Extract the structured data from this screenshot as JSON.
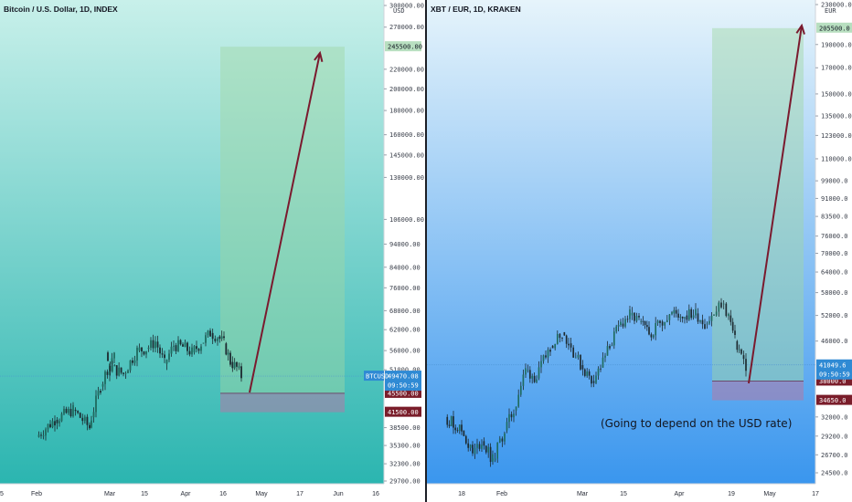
{
  "chart_data": [
    {
      "type": "candlestick",
      "title": "Bitcoin / U.S. Dollar, 1D, INDEX",
      "currency": "USD",
      "symbol_label": "BTCUSD",
      "yticks": [
        "300000.00",
        "270000.00",
        "245500.00",
        "220000.00",
        "200000.00",
        "180000.00",
        "160000.00",
        "145000.00",
        "130000.00",
        "106000.00",
        "94000.00",
        "84000.00",
        "76000.00",
        "68000.00",
        "62000.00",
        "56000.00",
        "51000.00",
        "45500.00",
        "41500.00",
        "38500.00",
        "35300.00",
        "32300.00",
        "29700.00"
      ],
      "xticks": [
        "5",
        "Feb",
        "Mar",
        "15",
        "Apr",
        "16",
        "May",
        "17",
        "Jun",
        "16"
      ],
      "ylim": [
        28500,
        300000
      ],
      "log_scale": true,
      "price_labels": {
        "current": "49470.08",
        "countdown": "09:50:59",
        "target": "245500.00",
        "entry": "45500.00",
        "stop": "41500.00"
      },
      "position": {
        "entry": 45500,
        "target": 245500,
        "stop": 41500
      },
      "colors": {
        "up": "#26a69a",
        "down": "#ef5350",
        "bg_top": "#c8f0ea",
        "bg_bottom": "#2bb5b0",
        "arrow": "#7a1a2e"
      }
    },
    {
      "type": "candlestick",
      "title": "XBT / EUR, 1D, KRAKEN",
      "currency": "EUR",
      "yticks": [
        "230000.0",
        "205500.0",
        "190000.0",
        "170000.0",
        "150000.0",
        "135000.0",
        "123000.0",
        "110000.0",
        "99000.0",
        "91000.0",
        "83500.0",
        "76000.0",
        "70000.0",
        "64000.0",
        "58000.0",
        "52000.0",
        "46000.0",
        "41049.6",
        "38000.0",
        "34650.0",
        "32000.0",
        "29200.0",
        "26700.0",
        "24500.0"
      ],
      "xticks": [
        "18",
        "Feb",
        "Mar",
        "15",
        "Apr",
        "19",
        "May",
        "17"
      ],
      "ylim": [
        23500,
        250000
      ],
      "log_scale": true,
      "price_labels": {
        "current": "41049.6",
        "countdown": "09:50:59",
        "target": "205500.0",
        "entry": "38000.0",
        "stop": "34650.0"
      },
      "position": {
        "entry": 38000,
        "target": 205500,
        "stop": 34650
      },
      "annotations": [
        "(Going to depend on the USD rate)"
      ],
      "colors": {
        "up": "#26a69a",
        "down": "#ef5350",
        "bg_top": "#e6f4fb",
        "bg_bottom": "#3a96ee",
        "arrow": "#7a1a2e"
      }
    }
  ]
}
